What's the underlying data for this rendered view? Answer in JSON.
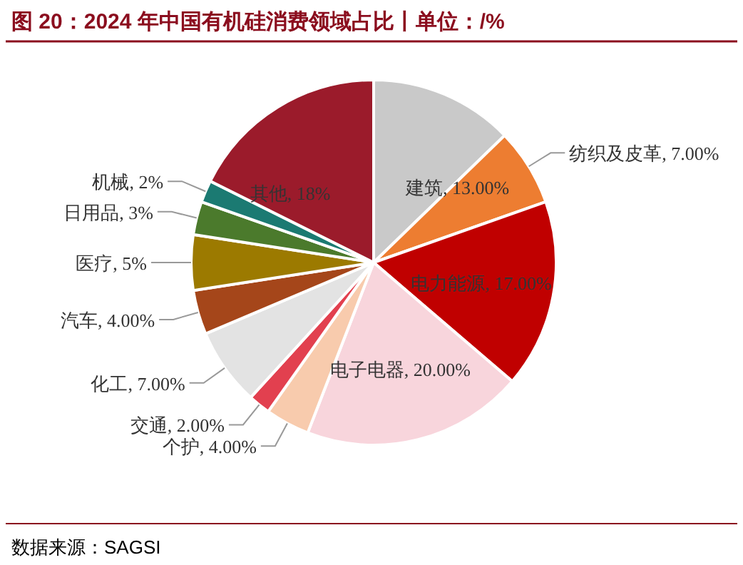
{
  "chart_data": {
    "type": "pie",
    "title": "图 20：2024 年中国有机硅消费领域占比丨单位：/%",
    "categories": [
      "建筑",
      "纺织及皮革",
      "电力能源",
      "电子电器",
      "个护",
      "交通",
      "化工",
      "汽车",
      "医疗",
      "日用品",
      "机械",
      "其他"
    ],
    "values": [
      13,
      7,
      17,
      20,
      4,
      2,
      7,
      4,
      5,
      3,
      2,
      18
    ],
    "value_labels": [
      "13.00%",
      "7.00%",
      "17.00%",
      "20.00%",
      "4.00%",
      "2.00%",
      "7.00%",
      "4.00%",
      "5%",
      "3%",
      "2%",
      "18%"
    ],
    "colors": [
      "#c9c9c9",
      "#ed7d31",
      "#c00000",
      "#f8d5dc",
      "#f8cbad",
      "#e2404f",
      "#e3e3e3",
      "#a5461a",
      "#9c7a00",
      "#4b7a2c",
      "#1b7a72",
      "#9b1b2b"
    ],
    "annotations": [
      "数据来源：SAGSI"
    ]
  }
}
